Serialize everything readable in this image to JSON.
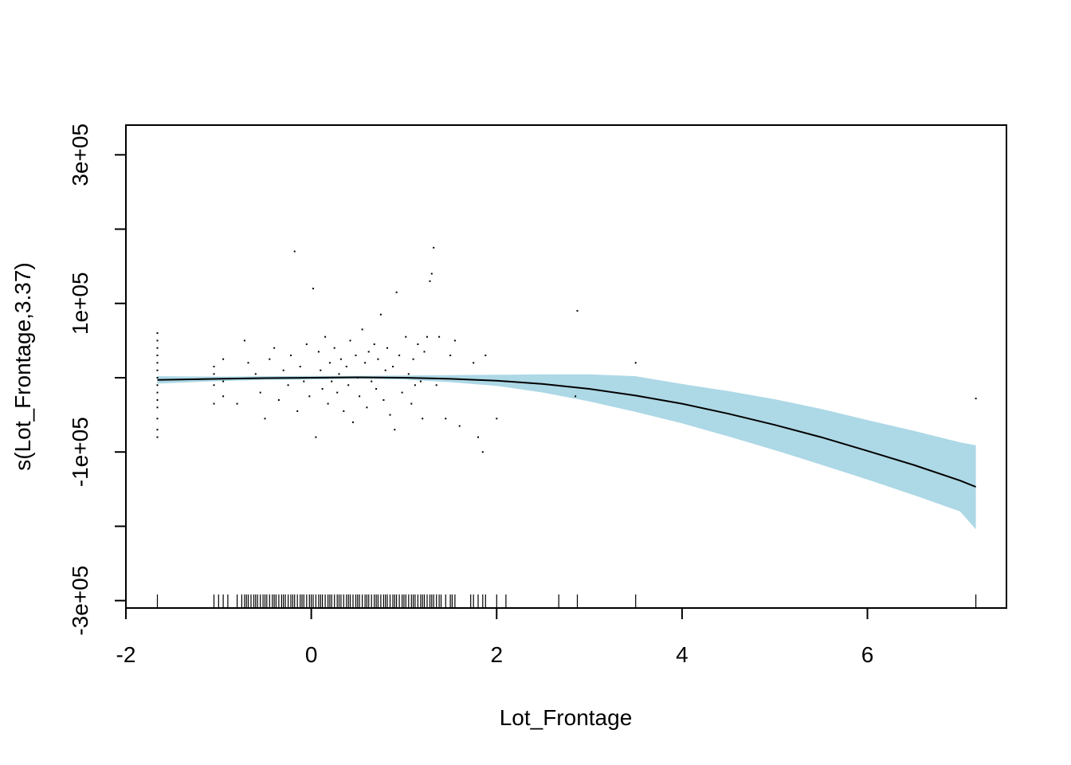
{
  "chart_data": {
    "type": "line",
    "title": "",
    "xlabel": "Lot_Frontage",
    "ylabel": "s(Lot_Frontage,3.37)",
    "xlim": [
      -2,
      7.5
    ],
    "ylim": [
      -310000,
      340000
    ],
    "x_ticks": [
      -2,
      0,
      2,
      4,
      6
    ],
    "x_tick_labels": [
      "-2",
      "0",
      "2",
      "4",
      "6"
    ],
    "y_ticks": [
      -300000,
      -200000,
      -100000,
      0,
      100000,
      200000,
      300000
    ],
    "y_tick_labels": [
      "-3e+05",
      "",
      "-1e+05",
      "",
      "1e+05",
      "",
      "3e+05"
    ],
    "band_color": "#add8e6",
    "line_color": "#000000",
    "series": [
      {
        "name": "smooth",
        "x": [
          -1.66,
          -1.0,
          -0.5,
          0.0,
          0.5,
          1.0,
          1.5,
          2.0,
          2.5,
          3.0,
          3.5,
          4.0,
          4.5,
          5.0,
          5.5,
          6.0,
          6.5,
          7.0,
          7.17
        ],
        "y": [
          -3000,
          -1500,
          -500,
          0,
          500,
          0,
          -1500,
          -4000,
          -8500,
          -15000,
          -24000,
          -35000,
          -48500,
          -63500,
          -80000,
          -98500,
          -117500,
          -138500,
          -147000
        ],
        "lower": [
          -8000,
          -4500,
          -3000,
          -2500,
          -1500,
          -2500,
          -6000,
          -11000,
          -20000,
          -32000,
          -46000,
          -61500,
          -79000,
          -97500,
          -117000,
          -137000,
          -158000,
          -180000,
          -204000
        ],
        "upper": [
          2000,
          1500,
          2000,
          2500,
          2500,
          3000,
          3500,
          4000,
          4500,
          4500,
          2000,
          -8500,
          -18000,
          -29000,
          -42000,
          -57000,
          -71500,
          -87000,
          -91000
        ]
      }
    ],
    "residuals": [
      {
        "x": -1.66,
        "y": 60000
      },
      {
        "x": -1.66,
        "y": 50000
      },
      {
        "x": -1.66,
        "y": 40000
      },
      {
        "x": -1.66,
        "y": 30000
      },
      {
        "x": -1.66,
        "y": 20000
      },
      {
        "x": -1.66,
        "y": 10000
      },
      {
        "x": -1.66,
        "y": 0
      },
      {
        "x": -1.66,
        "y": -10000
      },
      {
        "x": -1.66,
        "y": -20000
      },
      {
        "x": -1.66,
        "y": -30000
      },
      {
        "x": -1.66,
        "y": -40000
      },
      {
        "x": -1.66,
        "y": -55000
      },
      {
        "x": -1.66,
        "y": -70000
      },
      {
        "x": -1.66,
        "y": -80000
      },
      {
        "x": -1.05,
        "y": 15000
      },
      {
        "x": -1.05,
        "y": 5000
      },
      {
        "x": -1.05,
        "y": -10000
      },
      {
        "x": -1.05,
        "y": -35000
      },
      {
        "x": -0.95,
        "y": 25000
      },
      {
        "x": -0.95,
        "y": -5000
      },
      {
        "x": -0.95,
        "y": -25000
      },
      {
        "x": -0.8,
        "y": -35000
      },
      {
        "x": -0.72,
        "y": 50000
      },
      {
        "x": -0.68,
        "y": 20000
      },
      {
        "x": -0.6,
        "y": 5000
      },
      {
        "x": -0.55,
        "y": -20000
      },
      {
        "x": -0.5,
        "y": -55000
      },
      {
        "x": -0.45,
        "y": 25000
      },
      {
        "x": -0.4,
        "y": 40000
      },
      {
        "x": -0.35,
        "y": -30000
      },
      {
        "x": -0.3,
        "y": 10000
      },
      {
        "x": -0.25,
        "y": -10000
      },
      {
        "x": -0.22,
        "y": 30000
      },
      {
        "x": -0.18,
        "y": 170000
      },
      {
        "x": -0.15,
        "y": -45000
      },
      {
        "x": -0.12,
        "y": 15000
      },
      {
        "x": -0.08,
        "y": -5000
      },
      {
        "x": -0.05,
        "y": 45000
      },
      {
        "x": -0.02,
        "y": -25000
      },
      {
        "x": 0.02,
        "y": 120000
      },
      {
        "x": 0.05,
        "y": -80000
      },
      {
        "x": 0.08,
        "y": 35000
      },
      {
        "x": 0.1,
        "y": 10000
      },
      {
        "x": 0.12,
        "y": -15000
      },
      {
        "x": 0.15,
        "y": 55000
      },
      {
        "x": 0.18,
        "y": -35000
      },
      {
        "x": 0.2,
        "y": 20000
      },
      {
        "x": 0.22,
        "y": -5000
      },
      {
        "x": 0.25,
        "y": 40000
      },
      {
        "x": 0.28,
        "y": -20000
      },
      {
        "x": 0.3,
        "y": 5000
      },
      {
        "x": 0.32,
        "y": 25000
      },
      {
        "x": 0.35,
        "y": -45000
      },
      {
        "x": 0.38,
        "y": 15000
      },
      {
        "x": 0.4,
        "y": -10000
      },
      {
        "x": 0.42,
        "y": 50000
      },
      {
        "x": 0.45,
        "y": -60000
      },
      {
        "x": 0.48,
        "y": 30000
      },
      {
        "x": 0.5,
        "y": 0
      },
      {
        "x": 0.52,
        "y": -25000
      },
      {
        "x": 0.55,
        "y": 65000
      },
      {
        "x": 0.58,
        "y": 20000
      },
      {
        "x": 0.6,
        "y": -40000
      },
      {
        "x": 0.62,
        "y": 35000
      },
      {
        "x": 0.65,
        "y": -5000
      },
      {
        "x": 0.68,
        "y": 45000
      },
      {
        "x": 0.7,
        "y": -15000
      },
      {
        "x": 0.72,
        "y": 25000
      },
      {
        "x": 0.75,
        "y": 85000
      },
      {
        "x": 0.78,
        "y": -30000
      },
      {
        "x": 0.8,
        "y": 10000
      },
      {
        "x": 0.82,
        "y": 40000
      },
      {
        "x": 0.85,
        "y": -50000
      },
      {
        "x": 0.88,
        "y": 15000
      },
      {
        "x": 0.9,
        "y": -70000
      },
      {
        "x": 0.92,
        "y": 115000
      },
      {
        "x": 0.95,
        "y": 30000
      },
      {
        "x": 0.98,
        "y": -20000
      },
      {
        "x": 1.02,
        "y": 55000
      },
      {
        "x": 1.05,
        "y": 5000
      },
      {
        "x": 1.08,
        "y": -35000
      },
      {
        "x": 1.1,
        "y": 25000
      },
      {
        "x": 1.12,
        "y": -10000
      },
      {
        "x": 1.15,
        "y": 45000
      },
      {
        "x": 1.18,
        "y": -5000
      },
      {
        "x": 1.2,
        "y": -55000
      },
      {
        "x": 1.22,
        "y": 35000
      },
      {
        "x": 1.25,
        "y": 55000
      },
      {
        "x": 1.28,
        "y": 130000
      },
      {
        "x": 1.3,
        "y": 140000
      },
      {
        "x": 1.32,
        "y": 175000
      },
      {
        "x": 1.35,
        "y": -10000
      },
      {
        "x": 1.38,
        "y": 55000
      },
      {
        "x": 1.45,
        "y": -55000
      },
      {
        "x": 1.5,
        "y": 30000
      },
      {
        "x": 1.55,
        "y": 50000
      },
      {
        "x": 1.6,
        "y": -65000
      },
      {
        "x": 1.75,
        "y": 20000
      },
      {
        "x": 1.8,
        "y": -80000
      },
      {
        "x": 1.85,
        "y": -100000
      },
      {
        "x": 1.88,
        "y": 30000
      },
      {
        "x": 2.0,
        "y": -55000
      },
      {
        "x": 2.1,
        "y": -5000
      },
      {
        "x": 2.85,
        "y": -25000
      },
      {
        "x": 2.87,
        "y": 90000
      },
      {
        "x": 3.5,
        "y": 20000
      },
      {
        "x": 7.17,
        "y": -28000
      }
    ],
    "rug_x": [
      -1.66,
      -1.05,
      -1.0,
      -0.95,
      -0.9,
      -0.8,
      -0.75,
      -0.72,
      -0.7,
      -0.68,
      -0.65,
      -0.62,
      -0.6,
      -0.58,
      -0.55,
      -0.52,
      -0.5,
      -0.48,
      -0.45,
      -0.42,
      -0.4,
      -0.38,
      -0.35,
      -0.32,
      -0.3,
      -0.28,
      -0.25,
      -0.22,
      -0.2,
      -0.18,
      -0.15,
      -0.12,
      -0.1,
      -0.08,
      -0.05,
      -0.02,
      0.0,
      0.02,
      0.05,
      0.08,
      0.1,
      0.12,
      0.15,
      0.18,
      0.2,
      0.22,
      0.25,
      0.28,
      0.3,
      0.32,
      0.35,
      0.38,
      0.4,
      0.42,
      0.45,
      0.48,
      0.5,
      0.52,
      0.55,
      0.58,
      0.6,
      0.62,
      0.65,
      0.68,
      0.7,
      0.72,
      0.75,
      0.78,
      0.8,
      0.82,
      0.85,
      0.88,
      0.9,
      0.92,
      0.95,
      0.98,
      1.0,
      1.02,
      1.05,
      1.08,
      1.1,
      1.12,
      1.15,
      1.18,
      1.2,
      1.22,
      1.25,
      1.28,
      1.3,
      1.32,
      1.35,
      1.38,
      1.4,
      1.45,
      1.5,
      1.52,
      1.55,
      1.72,
      1.75,
      1.8,
      1.85,
      1.88,
      2.0,
      2.1,
      2.67,
      2.87,
      3.5,
      7.17
    ]
  }
}
